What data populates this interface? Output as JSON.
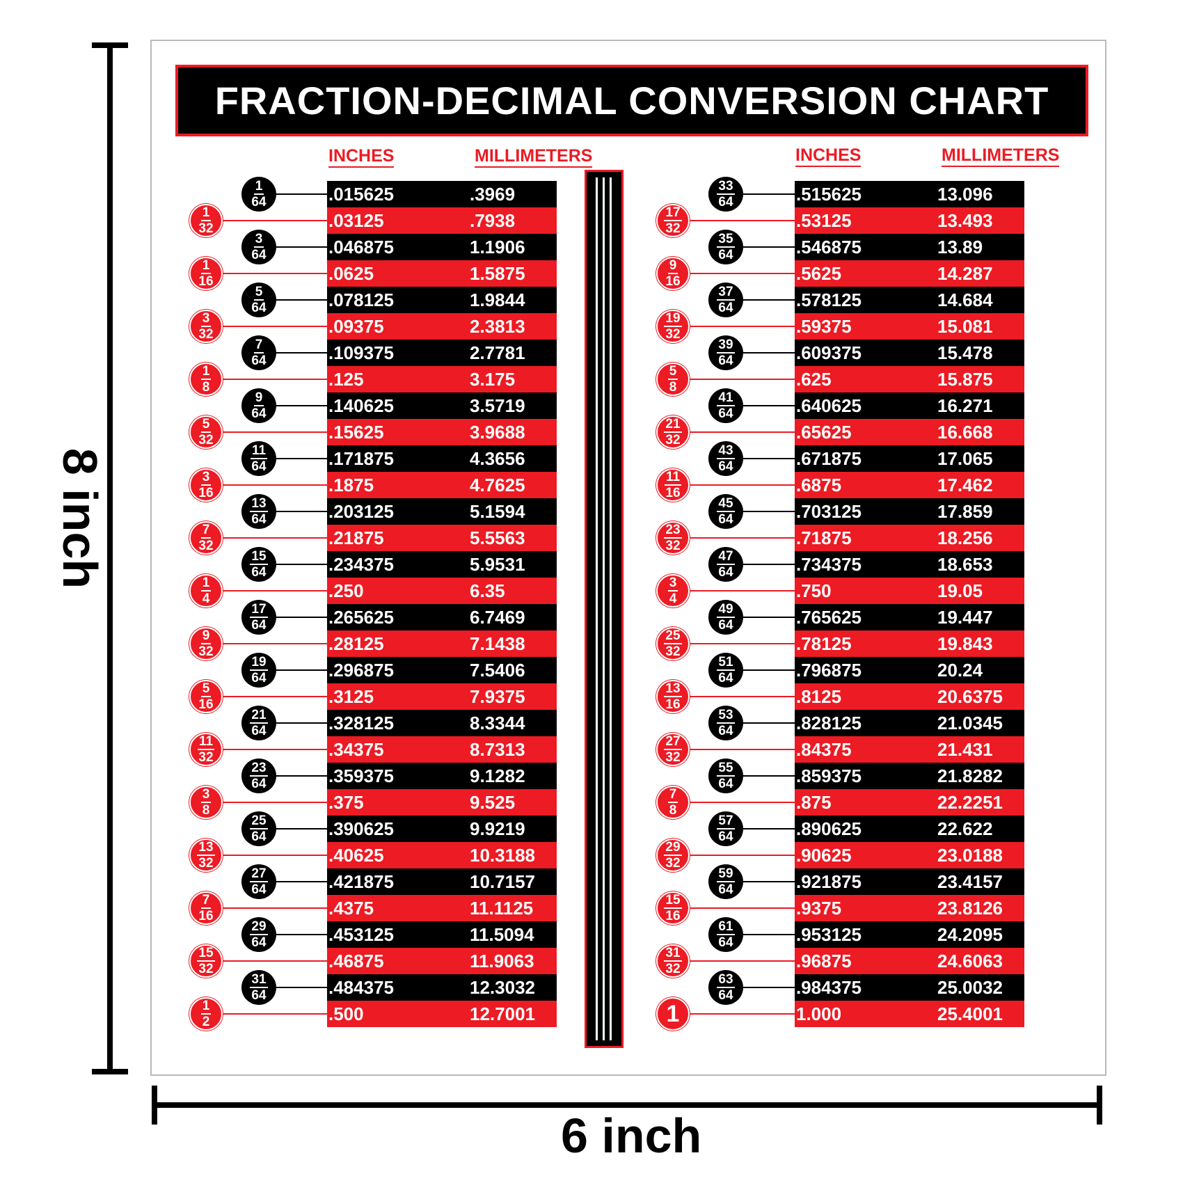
{
  "title": "FRACTION-DECIMAL CONVERSION CHART",
  "dimensions": {
    "height_label": "8 inch",
    "width_label": "6 inch"
  },
  "headers": {
    "inches": "INCHES",
    "millimeters": "MILLIMETERS"
  },
  "colors": {
    "red": "#ec1b24",
    "black": "#000000",
    "white": "#ffffff"
  },
  "left_table": [
    {
      "fraction": "1/64",
      "inches": ".015625",
      "mm": ".3969"
    },
    {
      "fraction": "1/32",
      "inches": ".03125",
      "mm": ".7938"
    },
    {
      "fraction": "3/64",
      "inches": ".046875",
      "mm": "1.1906"
    },
    {
      "fraction": "1/16",
      "inches": ".0625",
      "mm": "1.5875"
    },
    {
      "fraction": "5/64",
      "inches": ".078125",
      "mm": "1.9844"
    },
    {
      "fraction": "3/32",
      "inches": ".09375",
      "mm": "2.3813"
    },
    {
      "fraction": "7/64",
      "inches": ".109375",
      "mm": "2.7781"
    },
    {
      "fraction": "1/8",
      "inches": ".125",
      "mm": "3.175"
    },
    {
      "fraction": "9/64",
      "inches": ".140625",
      "mm": "3.5719"
    },
    {
      "fraction": "5/32",
      "inches": ".15625",
      "mm": "3.9688"
    },
    {
      "fraction": "11/64",
      "inches": ".171875",
      "mm": "4.3656"
    },
    {
      "fraction": "3/16",
      "inches": ".1875",
      "mm": "4.7625"
    },
    {
      "fraction": "13/64",
      "inches": ".203125",
      "mm": "5.1594"
    },
    {
      "fraction": "7/32",
      "inches": ".21875",
      "mm": "5.5563"
    },
    {
      "fraction": "15/64",
      "inches": ".234375",
      "mm": "5.9531"
    },
    {
      "fraction": "1/4",
      "inches": ".250",
      "mm": "6.35"
    },
    {
      "fraction": "17/64",
      "inches": ".265625",
      "mm": "6.7469"
    },
    {
      "fraction": "9/32",
      "inches": ".28125",
      "mm": "7.1438"
    },
    {
      "fraction": "19/64",
      "inches": ".296875",
      "mm": "7.5406"
    },
    {
      "fraction": "5/16",
      "inches": ".3125",
      "mm": "7.9375"
    },
    {
      "fraction": "21/64",
      "inches": ".328125",
      "mm": "8.3344"
    },
    {
      "fraction": "11/32",
      "inches": ".34375",
      "mm": "8.7313"
    },
    {
      "fraction": "23/64",
      "inches": ".359375",
      "mm": "9.1282"
    },
    {
      "fraction": "3/8",
      "inches": ".375",
      "mm": "9.525"
    },
    {
      "fraction": "25/64",
      "inches": ".390625",
      "mm": "9.9219"
    },
    {
      "fraction": "13/32",
      "inches": ".40625",
      "mm": "10.3188"
    },
    {
      "fraction": "27/64",
      "inches": ".421875",
      "mm": "10.7157"
    },
    {
      "fraction": "7/16",
      "inches": ".4375",
      "mm": "11.1125"
    },
    {
      "fraction": "29/64",
      "inches": ".453125",
      "mm": "11.5094"
    },
    {
      "fraction": "15/32",
      "inches": ".46875",
      "mm": "11.9063"
    },
    {
      "fraction": "31/64",
      "inches": ".484375",
      "mm": "12.3032"
    },
    {
      "fraction": "1/2",
      "inches": ".500",
      "mm": "12.7001"
    }
  ],
  "right_table": [
    {
      "fraction": "33/64",
      "inches": ".515625",
      "mm": "13.096"
    },
    {
      "fraction": "17/32",
      "inches": ".53125",
      "mm": "13.493"
    },
    {
      "fraction": "35/64",
      "inches": ".546875",
      "mm": "13.89"
    },
    {
      "fraction": "9/16",
      "inches": ".5625",
      "mm": "14.287"
    },
    {
      "fraction": "37/64",
      "inches": ".578125",
      "mm": "14.684"
    },
    {
      "fraction": "19/32",
      "inches": ".59375",
      "mm": "15.081"
    },
    {
      "fraction": "39/64",
      "inches": ".609375",
      "mm": "15.478"
    },
    {
      "fraction": "5/8",
      "inches": ".625",
      "mm": "15.875"
    },
    {
      "fraction": "41/64",
      "inches": ".640625",
      "mm": "16.271"
    },
    {
      "fraction": "21/32",
      "inches": ".65625",
      "mm": "16.668"
    },
    {
      "fraction": "43/64",
      "inches": ".671875",
      "mm": "17.065"
    },
    {
      "fraction": "11/16",
      "inches": ".6875",
      "mm": "17.462"
    },
    {
      "fraction": "45/64",
      "inches": ".703125",
      "mm": "17.859"
    },
    {
      "fraction": "23/32",
      "inches": ".71875",
      "mm": "18.256"
    },
    {
      "fraction": "47/64",
      "inches": ".734375",
      "mm": "18.653"
    },
    {
      "fraction": "3/4",
      "inches": ".750",
      "mm": "19.05"
    },
    {
      "fraction": "49/64",
      "inches": ".765625",
      "mm": "19.447"
    },
    {
      "fraction": "25/32",
      "inches": ".78125",
      "mm": "19.843"
    },
    {
      "fraction": "51/64",
      "inches": ".796875",
      "mm": "20.24"
    },
    {
      "fraction": "13/16",
      "inches": ".8125",
      "mm": "20.6375"
    },
    {
      "fraction": "53/64",
      "inches": ".828125",
      "mm": "21.0345"
    },
    {
      "fraction": "27/32",
      "inches": ".84375",
      "mm": "21.431"
    },
    {
      "fraction": "55/64",
      "inches": ".859375",
      "mm": "21.8282"
    },
    {
      "fraction": "7/8",
      "inches": ".875",
      "mm": "22.2251"
    },
    {
      "fraction": "57/64",
      "inches": ".890625",
      "mm": "22.622"
    },
    {
      "fraction": "29/32",
      "inches": ".90625",
      "mm": "23.0188"
    },
    {
      "fraction": "59/64",
      "inches": ".921875",
      "mm": "23.4157"
    },
    {
      "fraction": "15/16",
      "inches": ".9375",
      "mm": "23.8126"
    },
    {
      "fraction": "61/64",
      "inches": ".953125",
      "mm": "24.2095"
    },
    {
      "fraction": "31/32",
      "inches": ".96875",
      "mm": "24.6063"
    },
    {
      "fraction": "63/64",
      "inches": ".984375",
      "mm": "25.0032"
    },
    {
      "fraction": "1",
      "inches": "1.000",
      "mm": "25.4001"
    }
  ]
}
